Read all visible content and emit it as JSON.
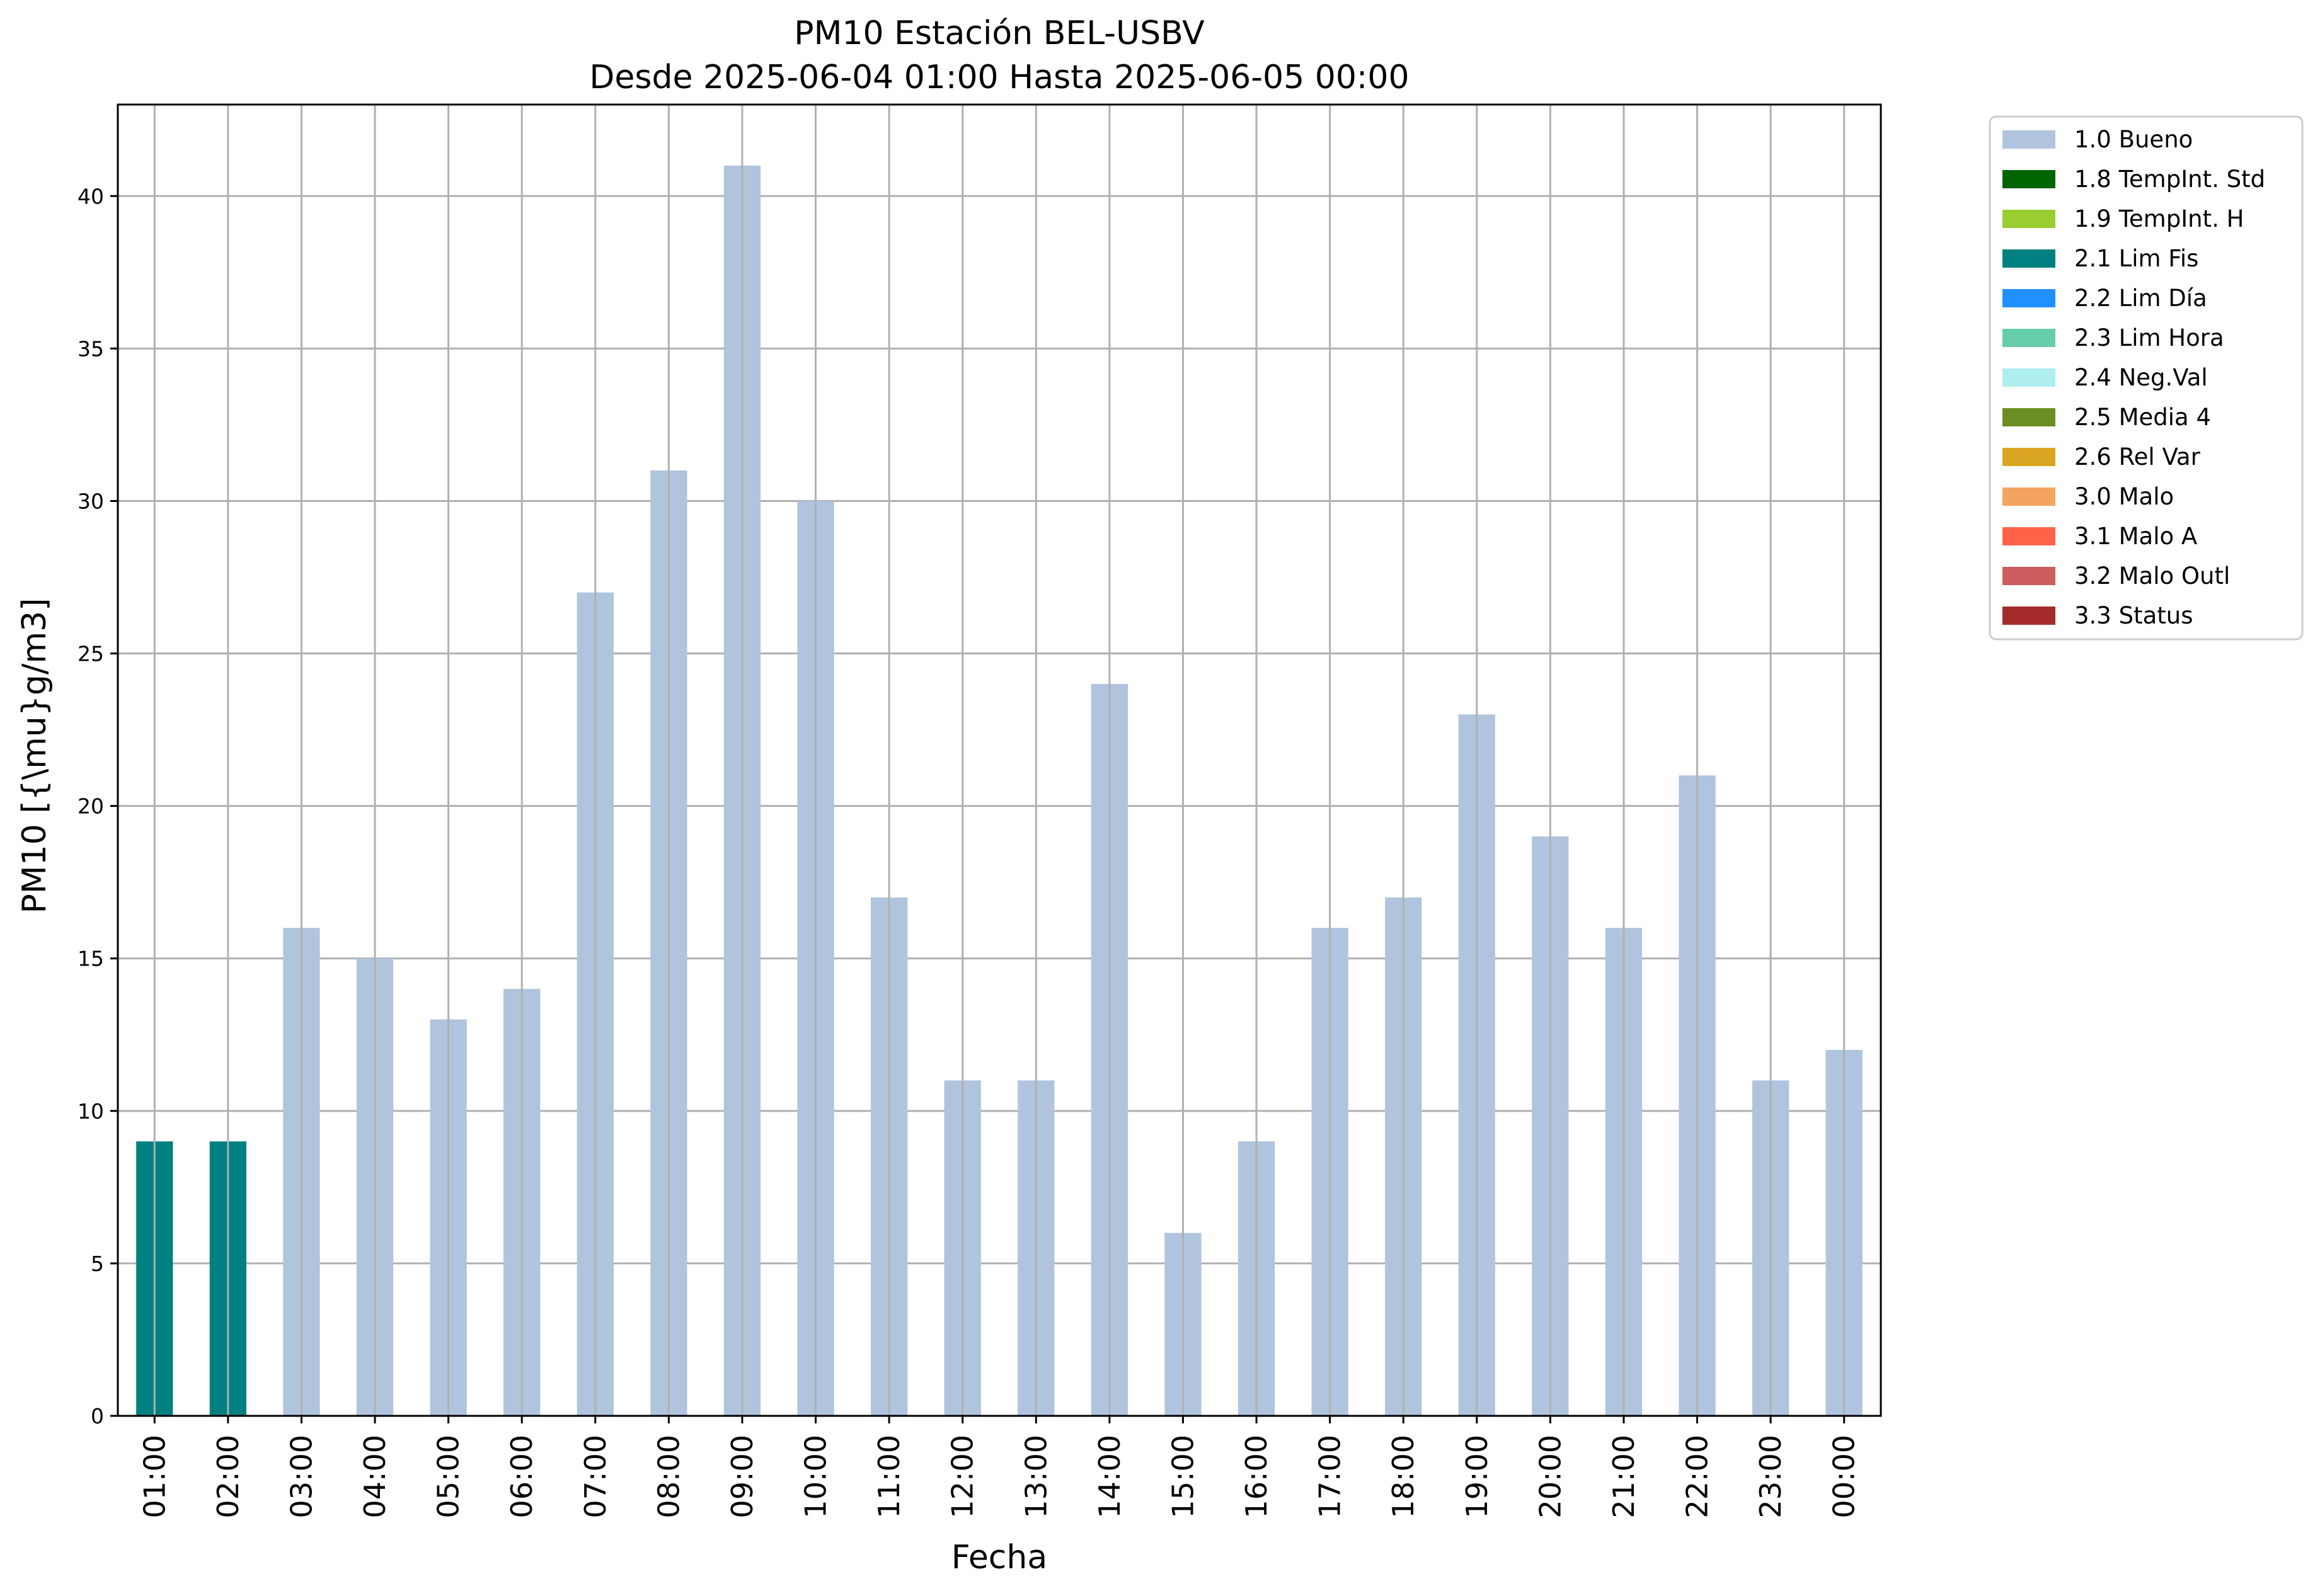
{
  "chart_data": {
    "type": "bar",
    "title": "PM10 Estación BEL-USBV",
    "subtitle": "Desde 2025-06-04 01:00 Hasta 2025-06-05 00:00",
    "xlabel": "Fecha",
    "ylabel": "PM10 [{\\mu}g/m3]",
    "ylim": [
      0,
      43
    ],
    "yticks": [
      0,
      5,
      10,
      15,
      20,
      25,
      30,
      35,
      40
    ],
    "grid": true,
    "legend_position": "outside-right-top",
    "categories": [
      "01:00",
      "02:00",
      "03:00",
      "04:00",
      "05:00",
      "06:00",
      "07:00",
      "08:00",
      "09:00",
      "10:00",
      "11:00",
      "12:00",
      "13:00",
      "14:00",
      "15:00",
      "16:00",
      "17:00",
      "18:00",
      "19:00",
      "20:00",
      "21:00",
      "22:00",
      "23:00",
      "00:00"
    ],
    "values": [
      9,
      9,
      16,
      15,
      13,
      14,
      27,
      31,
      41,
      30,
      17,
      11,
      11,
      24,
      6,
      9,
      16,
      17,
      23,
      19,
      16,
      21,
      11,
      12
    ],
    "flags": [
      "2.1 Lim Fis",
      "2.1 Lim Fis",
      "1.0 Bueno",
      "1.0 Bueno",
      "1.0 Bueno",
      "1.0 Bueno",
      "1.0 Bueno",
      "1.0 Bueno",
      "1.0 Bueno",
      "1.0 Bueno",
      "1.0 Bueno",
      "1.0 Bueno",
      "1.0 Bueno",
      "1.0 Bueno",
      "1.0 Bueno",
      "1.0 Bueno",
      "1.0 Bueno",
      "1.0 Bueno",
      "1.0 Bueno",
      "1.0 Bueno",
      "1.0 Bueno",
      "1.0 Bueno",
      "1.0 Bueno",
      "1.0 Bueno"
    ],
    "legend": [
      {
        "name": "1.0 Bueno",
        "color": "#b0c4de"
      },
      {
        "name": "1.8 TempInt. Std",
        "color": "#006400"
      },
      {
        "name": "1.9 TempInt. H",
        "color": "#9acd32"
      },
      {
        "name": "2.1 Lim Fis",
        "color": "#008080"
      },
      {
        "name": "2.2 Lim Día",
        "color": "#1e90ff"
      },
      {
        "name": "2.3 Lim Hora",
        "color": "#66cdaa"
      },
      {
        "name": "2.4 Neg.Val",
        "color": "#afeeee"
      },
      {
        "name": "2.5 Media 4",
        "color": "#6b8e23"
      },
      {
        "name": "2.6 Rel Var",
        "color": "#daa520"
      },
      {
        "name": "3.0 Malo",
        "color": "#f4a460"
      },
      {
        "name": "3.1 Malo A",
        "color": "#ff6347"
      },
      {
        "name": "3.2 Malo Outl",
        "color": "#cd5c5c"
      },
      {
        "name": "3.3 Status",
        "color": "#a52a2a"
      }
    ]
  }
}
